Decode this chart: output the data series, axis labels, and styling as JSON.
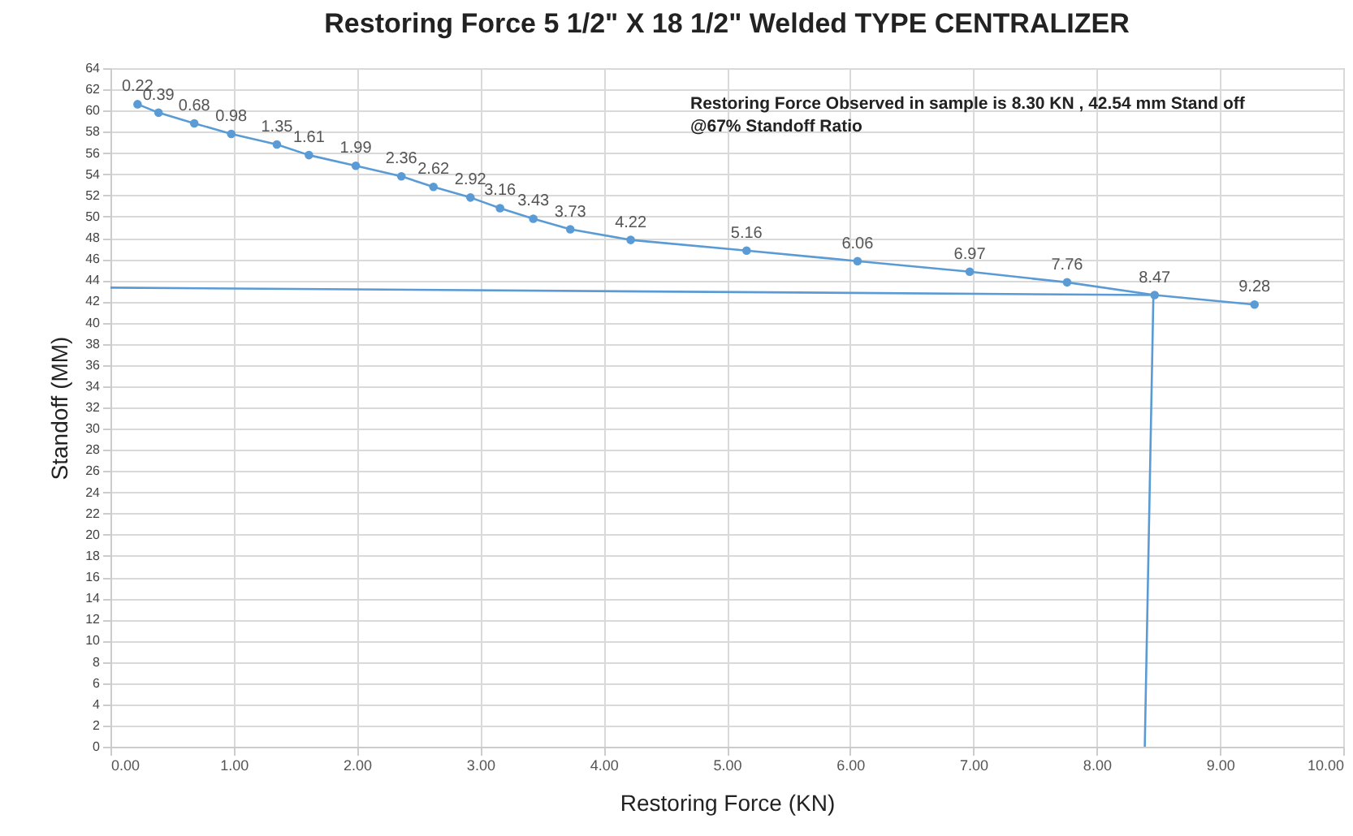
{
  "chart_data": {
    "type": "line",
    "title": "Restoring Force 5 1/2\" X 18 1/2\" Welded TYPE CENTRALIZER",
    "xlabel": "Restoring Force (KN)",
    "ylabel": "Standoff (MM)",
    "annotations": [
      "Restoring Force Observed in sample is 8.30 KN , 42.54 mm Stand off",
      "@67% Standoff Ratio",
      {
        "text": "0.22",
        "x": 0.22,
        "y": 60.6
      },
      {
        "text": "0.39",
        "x": 0.39,
        "y": 59.8
      },
      {
        "text": "0.68",
        "x": 0.68,
        "y": 58.8
      },
      {
        "text": "0.98",
        "x": 0.98,
        "y": 57.8
      },
      {
        "text": "1.35",
        "x": 1.35,
        "y": 56.8
      },
      {
        "text": "1.61",
        "x": 1.61,
        "y": 55.8
      },
      {
        "text": "1.99",
        "x": 1.99,
        "y": 54.8
      },
      {
        "text": "2.36",
        "x": 2.36,
        "y": 53.8
      },
      {
        "text": "2.62",
        "x": 2.62,
        "y": 52.8
      },
      {
        "text": "2.92",
        "x": 2.92,
        "y": 51.8
      },
      {
        "text": "3.16",
        "x": 3.16,
        "y": 50.8
      },
      {
        "text": "3.43",
        "x": 3.43,
        "y": 49.8
      },
      {
        "text": "3.73",
        "x": 3.73,
        "y": 48.8
      },
      {
        "text": "4.22",
        "x": 4.22,
        "y": 47.8
      },
      {
        "text": "5.16",
        "x": 5.16,
        "y": 46.8
      },
      {
        "text": "6.06",
        "x": 6.06,
        "y": 45.8
      },
      {
        "text": "6.97",
        "x": 6.97,
        "y": 44.8
      },
      {
        "text": "7.76",
        "x": 7.76,
        "y": 43.8
      },
      {
        "text": "8.47",
        "x": 8.47,
        "y": 42.6
      },
      {
        "text": "9.28",
        "x": 9.28,
        "y": 41.7
      }
    ],
    "series": [
      {
        "color": "#5b9bd5",
        "marker": "circle",
        "x": [
          0.22,
          0.39,
          0.68,
          0.98,
          1.35,
          1.61,
          1.99,
          2.36,
          2.62,
          2.92,
          3.16,
          3.43,
          3.73,
          4.22,
          5.16,
          6.06,
          6.97,
          7.76,
          8.47,
          9.28
        ],
        "values": [
          60.6,
          59.8,
          58.8,
          57.8,
          56.8,
          55.8,
          54.8,
          53.8,
          52.8,
          51.8,
          50.8,
          49.8,
          48.8,
          47.8,
          46.8,
          45.8,
          44.8,
          43.8,
          42.6,
          41.7
        ]
      },
      {
        "color": "#5b9bd5",
        "marker": "none",
        "x": [
          0,
          8.46,
          8.39
        ],
        "values": [
          43.3,
          42.6,
          0
        ]
      }
    ],
    "xlim": [
      0,
      10
    ],
    "xticks": [
      {
        "value": 0,
        "label": "0.00"
      },
      {
        "value": 1,
        "label": "1.00"
      },
      {
        "value": 2,
        "label": "2.00"
      },
      {
        "value": 3,
        "label": "3.00"
      },
      {
        "value": 4,
        "label": "4.00"
      },
      {
        "value": 5,
        "label": "5.00"
      },
      {
        "value": 6,
        "label": "6.00"
      },
      {
        "value": 7,
        "label": "7.00"
      },
      {
        "value": 8,
        "label": "8.00"
      },
      {
        "value": 9,
        "label": "9.00"
      },
      {
        "value": 10,
        "label": "10.00"
      }
    ],
    "ylim": [
      0,
      64
    ],
    "yticks": [
      0,
      2,
      4,
      6,
      8,
      10,
      12,
      14,
      16,
      18,
      20,
      22,
      24,
      26,
      28,
      30,
      32,
      34,
      36,
      38,
      40,
      42,
      44,
      46,
      48,
      50,
      52,
      54,
      56,
      58,
      60,
      62,
      64
    ],
    "grid": true
  }
}
